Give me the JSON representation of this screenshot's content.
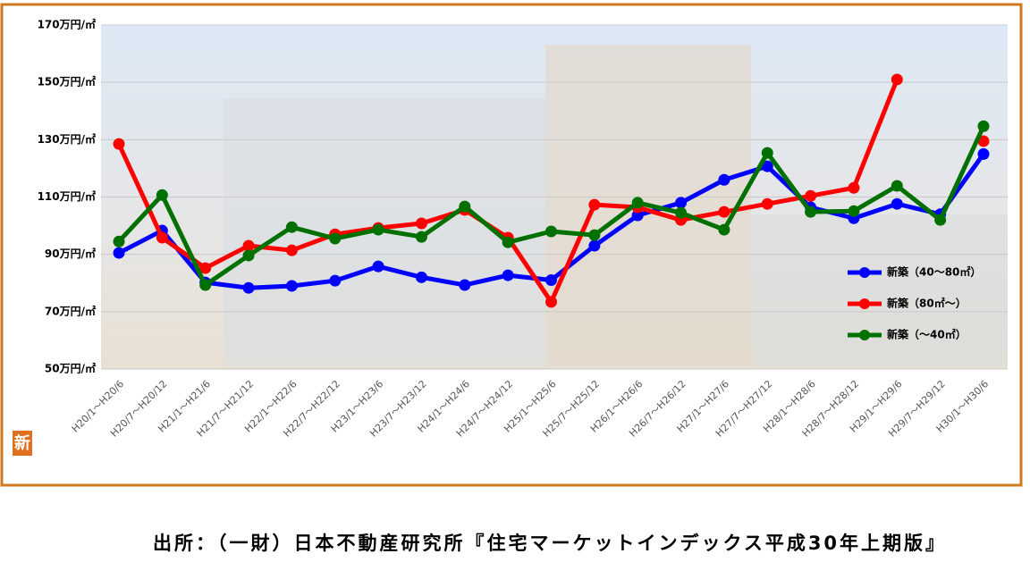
{
  "chart_data": {
    "type": "line",
    "categories": [
      "H20/1～H20/6",
      "H20/7～H20/12",
      "H21/1～H21/6",
      "H21/7～H21/12",
      "H22/1～H22/6",
      "H22/7～H22/12",
      "H23/1～H23/6",
      "H23/7～H23/12",
      "H24/1～H24/6",
      "H24/7～H24/12",
      "H25/1～H25/6",
      "H25/7～H25/12",
      "H26/1～H26/6",
      "H26/7～H26/12",
      "H27/1～H27/6",
      "H27/7～H27/12",
      "H28/1～H28/6",
      "H28/7～H28/12",
      "H29/1～H29/6",
      "H29/7～H29/12",
      "H30/1～H30/6"
    ],
    "series": [
      {
        "name": "新築（40～80㎡）",
        "color": "#0000ff",
        "values": [
          90.5,
          98.3,
          80.2,
          78.3,
          79,
          80.8,
          85.8,
          82,
          79.3,
          82.7,
          81,
          93,
          103.6,
          108,
          116,
          120.7,
          106.4,
          102.6,
          107.6,
          104,
          125
        ]
      },
      {
        "name": "新築（80㎡～）",
        "color": "#ff0000",
        "values": [
          128.5,
          95.8,
          85.2,
          93,
          91.4,
          97,
          99.2,
          100.8,
          105.5,
          95.8,
          73.4,
          107.3,
          106.4,
          102,
          104.8,
          107.6,
          110.4,
          113.2,
          151,
          null,
          129.5
        ]
      },
      {
        "name": "新築（～40㎡）",
        "color": "#007000",
        "values": [
          94.5,
          110.7,
          79.3,
          89.6,
          99.5,
          95.5,
          98.6,
          96.1,
          106.7,
          94.2,
          98,
          96.7,
          108,
          104.5,
          98.6,
          125.4,
          104.8,
          105.1,
          113.9,
          102,
          134.7
        ]
      }
    ],
    "ylim": [
      50,
      170
    ],
    "yticks": [
      {
        "value": 50,
        "label": "50万円/㎡"
      },
      {
        "value": 70,
        "label": "70万円/㎡"
      },
      {
        "value": 90,
        "label": "90万円/㎡"
      },
      {
        "value": 110,
        "label": "110万円/㎡"
      },
      {
        "value": 130,
        "label": "130万円/㎡"
      },
      {
        "value": 150,
        "label": "150万円/㎡"
      },
      {
        "value": 170,
        "label": "170万円/㎡"
      }
    ],
    "grid": true,
    "legend": "right",
    "icon_label": "新",
    "source": "出所：（一財）日本不動産研究所『住宅マーケットインデックス平成30年上期版』"
  }
}
